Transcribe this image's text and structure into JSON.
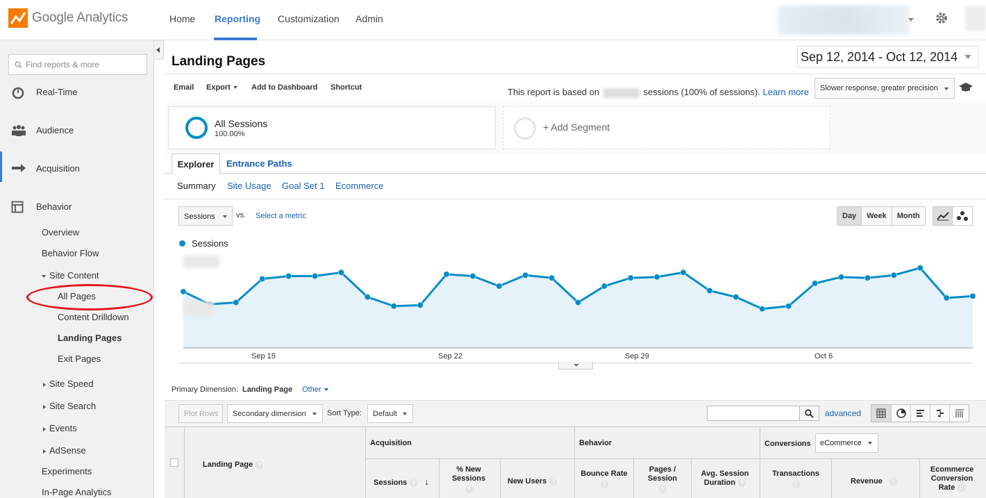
{
  "app": {
    "name": "Google Analytics"
  },
  "nav": {
    "home": "Home",
    "reporting": "Reporting",
    "customization": "Customization",
    "admin": "Admin"
  },
  "sidebar": {
    "search_placeholder": "Find reports & more",
    "items": [
      {
        "label": "Real-Time",
        "icon": "clock-icon"
      },
      {
        "label": "Audience",
        "icon": "people-icon"
      },
      {
        "label": "Acquisition",
        "icon": "arrows-icon"
      },
      {
        "label": "Behavior",
        "icon": "layout-icon"
      }
    ],
    "behavior": {
      "overview": "Overview",
      "flow": "Behavior Flow",
      "site_content": "Site Content",
      "all_pages": "All Pages",
      "drilldown": "Content Drilldown",
      "landing_pages": "Landing Pages",
      "exit_pages": "Exit Pages",
      "site_speed": "Site Speed",
      "site_search": "Site Search",
      "events": "Events",
      "adsense": "AdSense",
      "experiments": "Experiments",
      "inpage": "In-Page Analytics"
    }
  },
  "page": {
    "title": "Landing Pages",
    "date_range": "Sep 12, 2014 - Oct 12, 2014",
    "toolbar": {
      "email": "Email",
      "export": "Export",
      "add_dashboard": "Add to Dashboard",
      "shortcut": "Shortcut"
    },
    "sessions_note_pre": "This report is based on",
    "sessions_note_post": "sessions (100% of sessions).",
    "learn_more": "Learn more",
    "precision": "Slower response, greater precision"
  },
  "segments": {
    "active": {
      "name": "All Sessions",
      "pct": "100.00%"
    },
    "add": "+ Add Segment"
  },
  "tabs": {
    "explorer": "Explorer",
    "entrance_paths": "Entrance Paths"
  },
  "subtabs": [
    "Summary",
    "Site Usage",
    "Goal Set 1",
    "Ecommerce"
  ],
  "chart_controls": {
    "metric": "Sessions",
    "vs": "vs.",
    "select_metric": "Select a metric",
    "granularity": [
      "Day",
      "Week",
      "Month"
    ]
  },
  "chart_data": {
    "type": "area",
    "series": [
      {
        "name": "Sessions",
        "values": [
          0.62,
          0.48,
          0.5,
          0.76,
          0.79,
          0.79,
          0.83,
          0.56,
          0.46,
          0.47,
          0.81,
          0.79,
          0.68,
          0.8,
          0.77,
          0.5,
          0.68,
          0.77,
          0.78,
          0.83,
          0.63,
          0.56,
          0.43,
          0.46,
          0.71,
          0.78,
          0.77,
          0.8,
          0.88,
          0.55,
          0.57
        ]
      }
    ],
    "x_tick_labels": [
      "Sep 15",
      "Sep 22",
      "Sep 29",
      "Oct 6"
    ],
    "y_tick_labels_visible": false,
    "color": "#058dc7",
    "fill": "#e5f2f9",
    "grid": true,
    "legend": "top-left"
  },
  "table": {
    "primary_dimension_label": "Primary Dimension:",
    "primary_dimension": "Landing Page",
    "other": "Other",
    "plot_rows": "Plot Rows",
    "secondary_dimension": "Secondary dimension",
    "sort_type_label": "Sort Type:",
    "sort_type": "Default",
    "advanced": "advanced",
    "groups": {
      "acquisition": "Acquisition",
      "behavior": "Behavior",
      "conversions": "Conversions"
    },
    "conversion_select": "eCommerce",
    "columns": {
      "landing_page": "Landing Page",
      "sessions": "Sessions",
      "new_sessions": "% New Sessions",
      "new_users": "New Users",
      "bounce_rate": "Bounce Rate",
      "pages_session": "Pages / Session",
      "avg_duration": "Avg. Session Duration",
      "transactions": "Transactions",
      "revenue": "Revenue",
      "ecommerce_rate": "Ecommerce Conversion Rate"
    },
    "help": "?"
  }
}
